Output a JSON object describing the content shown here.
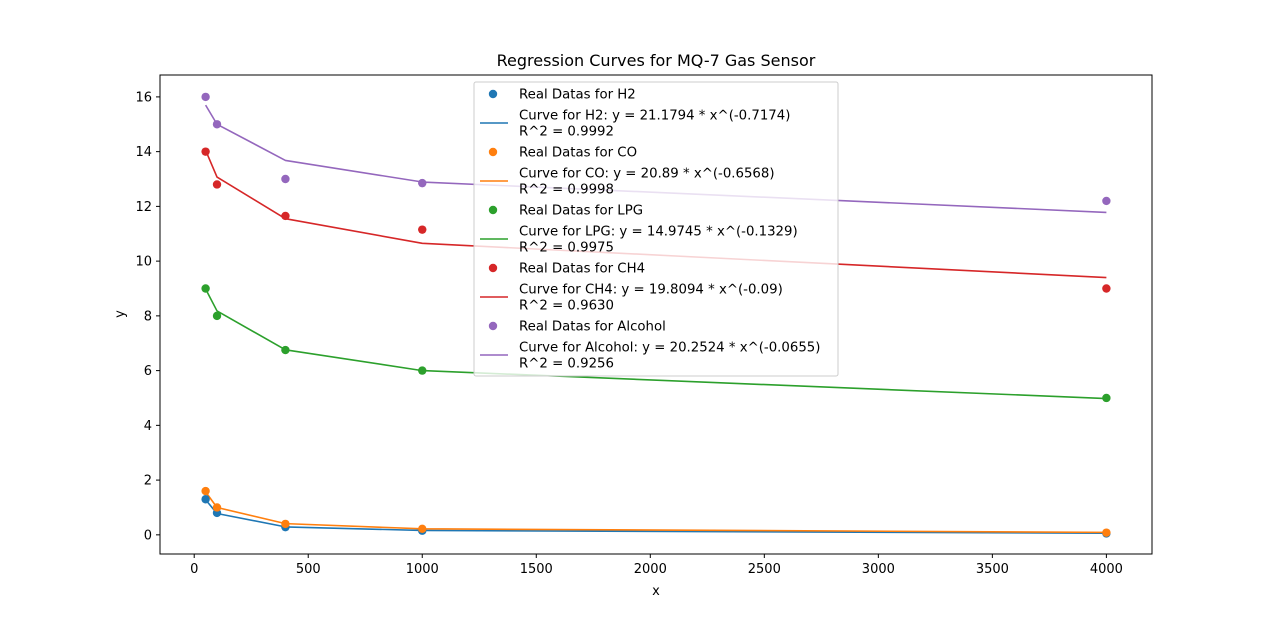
{
  "chart_data": {
    "type": "scatter",
    "title": "Regression Curves for MQ-7 Gas Sensor",
    "xlabel": "x",
    "ylabel": "y",
    "xlim": [
      -150,
      4200
    ],
    "ylim": [
      -0.7,
      16.8
    ],
    "xticks": [
      0,
      500,
      1000,
      1500,
      2000,
      2500,
      3000,
      3500,
      4000
    ],
    "yticks": [
      0,
      2,
      4,
      6,
      8,
      10,
      12,
      14,
      16
    ],
    "grid": false,
    "legend_position": "upper-center",
    "x": [
      50,
      100,
      400,
      1000,
      4000
    ],
    "series": [
      {
        "key": "h2",
        "color": "#1f77b4",
        "points_label": "Real Datas for H2",
        "curve_label": "Curve for H2: y = 21.1794 * x^(-0.7174)",
        "r2_label": "R^2 = 0.9992",
        "points": [
          1.3,
          0.8,
          0.28,
          0.15,
          0.05
        ],
        "curve": [
          1.28,
          0.78,
          0.29,
          0.16,
          0.06
        ]
      },
      {
        "key": "co",
        "color": "#ff7f0e",
        "points_label": "Real Datas for CO",
        "curve_label": "Curve for CO: y = 20.89 * x^(-0.6568)",
        "r2_label": "R^2 = 0.9998",
        "points": [
          1.6,
          1.0,
          0.4,
          0.22,
          0.08
        ],
        "curve": [
          1.57,
          1.0,
          0.41,
          0.22,
          0.09
        ]
      },
      {
        "key": "lpg",
        "color": "#2ca02c",
        "points_label": "Real Datas for LPG",
        "curve_label": "Curve for LPG: y = 14.9745 * x^(-0.1329)",
        "r2_label": "R^2 = 0.9975",
        "points": [
          9.0,
          8.0,
          6.75,
          6.0,
          5.0
        ],
        "curve": [
          8.98,
          8.18,
          6.76,
          6.0,
          4.98
        ]
      },
      {
        "key": "ch4",
        "color": "#d62728",
        "points_label": "Real Datas for CH4",
        "curve_label": "Curve for CH4: y = 19.8094 * x^(-0.09)",
        "r2_label": "R^2 = 0.9630",
        "points": [
          14.0,
          12.8,
          11.65,
          11.15,
          9.0
        ],
        "curve": [
          14.05,
          13.07,
          11.55,
          10.65,
          9.4
        ]
      },
      {
        "key": "alcohol",
        "color": "#9467bd",
        "points_label": "Real Datas for Alcohol",
        "curve_label": "Curve for Alcohol: y = 20.2524 * x^(-0.0655)",
        "r2_label": "R^2 = 0.9256",
        "points": [
          16.0,
          15.0,
          13.0,
          12.85,
          12.2
        ],
        "curve": [
          15.7,
          15.0,
          13.68,
          12.89,
          11.78
        ]
      }
    ]
  }
}
